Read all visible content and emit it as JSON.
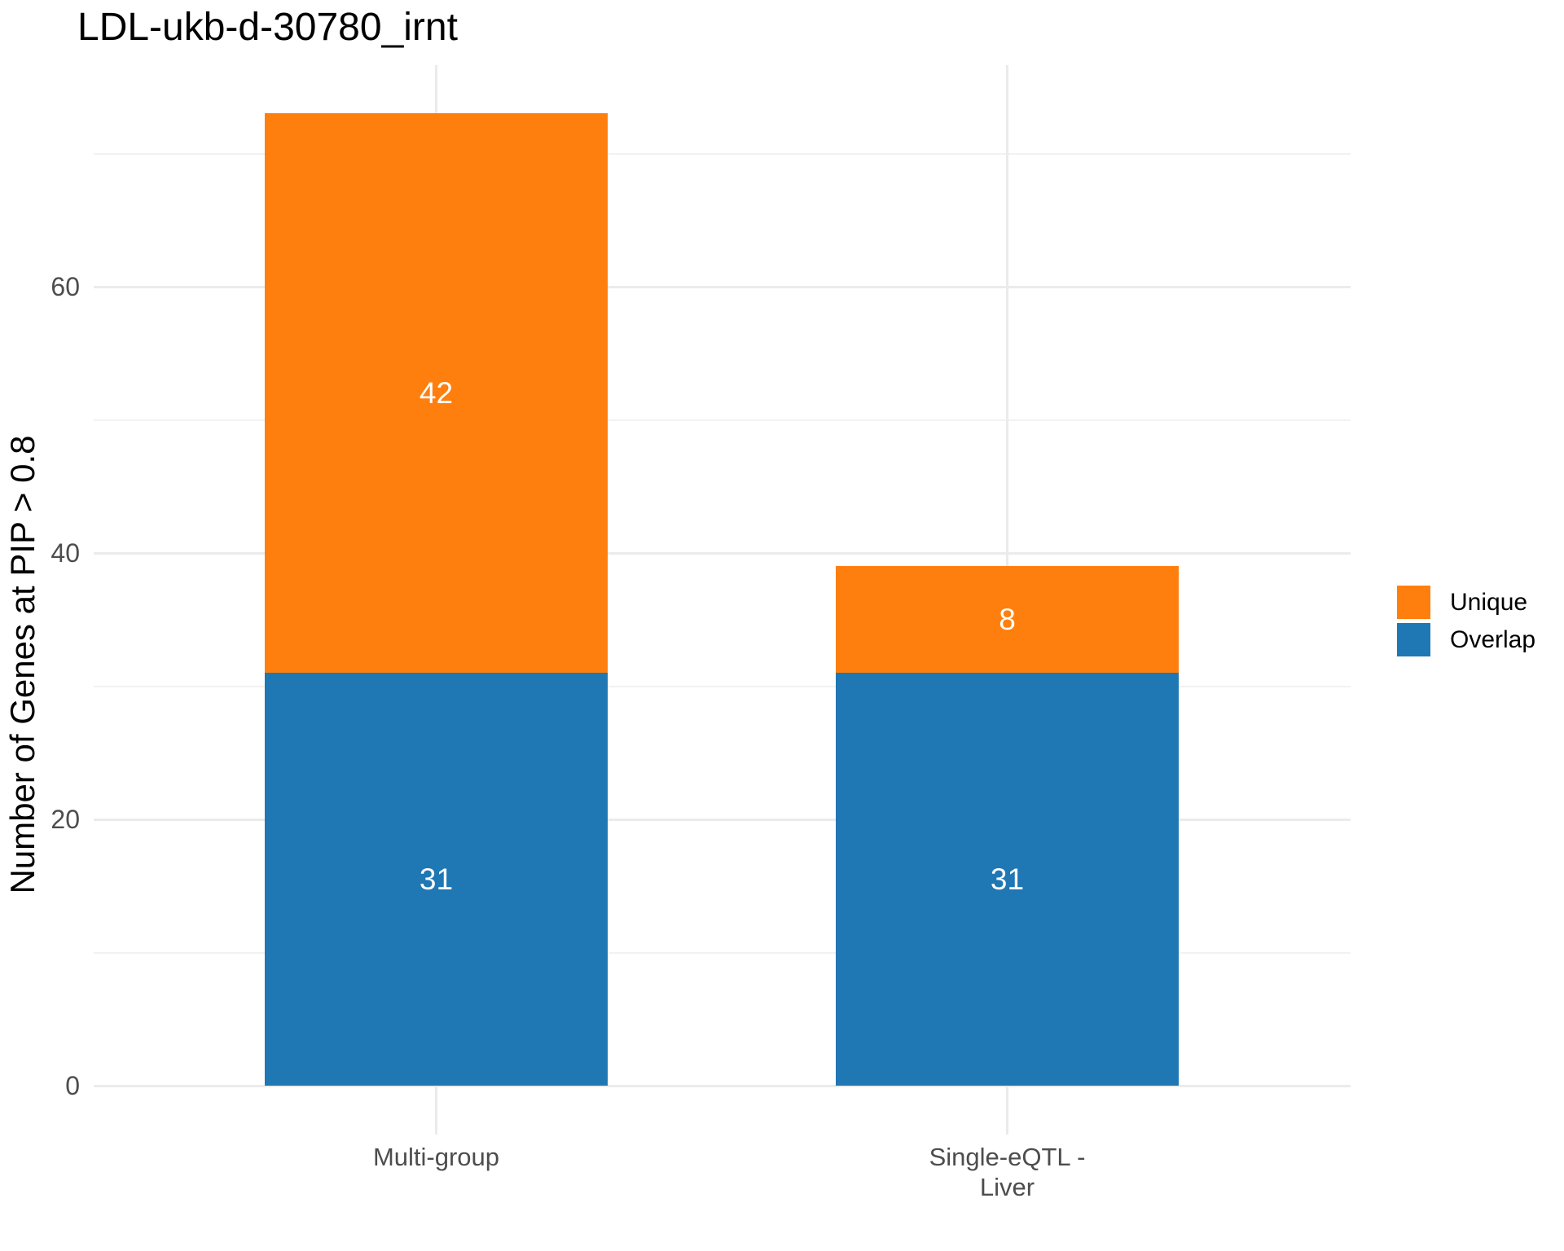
{
  "chart_data": {
    "type": "bar",
    "stacked": true,
    "title": "LDL-ukb-d-30780_irnt",
    "ylabel": "Number of Genes at PIP > 0.8",
    "xlabel": "",
    "categories": [
      "Multi-group",
      "Single-eQTL - Liver"
    ],
    "category_label_lines": [
      [
        "Multi-group"
      ],
      [
        "Single-eQTL -",
        "Liver"
      ]
    ],
    "series": [
      {
        "name": "Overlap",
        "color": "#1F77B4",
        "values": [
          31,
          31
        ]
      },
      {
        "name": "Unique",
        "color": "#FF7F0E",
        "values": [
          42,
          8
        ]
      }
    ],
    "bar_totals": [
      73,
      39
    ],
    "yticks": [
      0,
      20,
      40,
      60
    ],
    "minor_gridlines": [
      10,
      30,
      50,
      70
    ],
    "ylim": [
      0,
      76.6
    ],
    "grid": true,
    "legend": {
      "position": "right",
      "entries": [
        "Unique",
        "Overlap"
      ]
    },
    "colors": {
      "unique": "#FF7F0E",
      "overlap": "#1F77B4",
      "grid_major": "#EBEBEB",
      "grid_minor": "#F2F2F2",
      "tick_text": "#4D4D4D",
      "value_text": "#FFFFFF",
      "title_text": "#000000"
    }
  }
}
